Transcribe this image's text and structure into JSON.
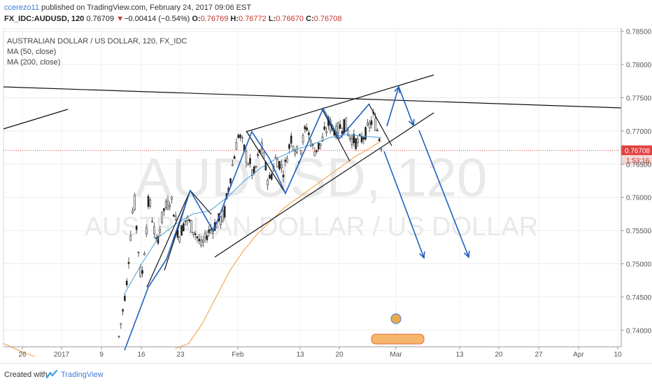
{
  "header": {
    "author": "ccerezo11",
    "published": " published on TradingView.com, February 24, 2017 09:06 EST",
    "symbol": "FX_IDC:AUDUSD, 120",
    "last": "0.76709",
    "change_arrow": "▼",
    "change": "−0.00414 (−0.54%)",
    "o_label": "O:",
    "o": "0.76769",
    "h_label": "H:",
    "h": "0.76772",
    "l_label": "L:",
    "l": "0.76670",
    "c_label": "C:",
    "c": "0.76708"
  },
  "legend": {
    "title": "AUSTRALIAN DOLLAR / US DOLLAR, 120, FX_IDC",
    "ma50": "MA (50, close)",
    "ma200": "MA (200, close)"
  },
  "watermark": {
    "big": "AUDUSD, 120",
    "small": "AUSTRALIAN DOLLAR / US DOLLAR"
  },
  "footer": {
    "created": "Created with",
    "brand": "TradingView"
  },
  "chart_data": {
    "type": "line",
    "title": "AUSTRALIAN DOLLAR / US DOLLAR, 120, FX_IDC",
    "ylim": [
      0.7375,
      0.7855
    ],
    "y_ticks": [
      "0.78500",
      "0.78000",
      "0.77500",
      "0.77000",
      "0.76500",
      "0.76000",
      "0.75500",
      "0.75000",
      "0.74500",
      "0.74000"
    ],
    "x_ticks": [
      "26",
      "2017",
      "9",
      "16",
      "23",
      "Feb",
      "13",
      "20",
      "Mar",
      "13",
      "20",
      "27",
      "Apr",
      "10"
    ],
    "price_label": "0.76708",
    "time_label": "1:53:16",
    "last_price": 0.76708,
    "grid": true,
    "legend_position": "top-left",
    "colors": {
      "candle": "#222222",
      "ma50": "#4a9fd5",
      "ma200": "#f29a3d",
      "price_line": "#e04040",
      "arrows": "#1f5fbf",
      "trendlines": "#111111"
    },
    "price_path": [
      [
        0.7385,
        0.7395
      ],
      [
        0.7462,
        0.747
      ],
      [
        0.7592,
        0.7612
      ],
      [
        0.7462,
        0.7478
      ],
      [
        0.7592,
        0.761
      ],
      [
        0.7522,
        0.7535
      ],
      [
        0.7572,
        0.759
      ],
      [
        0.7592,
        0.7603
      ],
      [
        0.7532,
        0.755
      ],
      [
        0.7562,
        0.7575
      ],
      [
        0.7542,
        0.756
      ],
      [
        0.7522,
        0.7533
      ],
      [
        0.7542,
        0.7555
      ],
      [
        0.7552,
        0.757
      ],
      [
        0.7562,
        0.758
      ],
      [
        0.7632,
        0.7648
      ],
      [
        0.7692,
        0.7702
      ],
      [
        0.7652,
        0.7672
      ],
      [
        0.7622,
        0.7642
      ],
      [
        0.7672,
        0.7685
      ],
      [
        0.7612,
        0.763
      ],
      [
        0.7652,
        0.767
      ],
      [
        0.7632,
        0.7645
      ],
      [
        0.7682,
        0.77
      ],
      [
        0.7652,
        0.7668
      ],
      [
        0.7702,
        0.7715
      ],
      [
        0.7662,
        0.7676
      ],
      [
        0.7672,
        0.769
      ],
      [
        0.7702,
        0.7722
      ],
      [
        0.7692,
        0.7705
      ],
      [
        0.7702,
        0.7725
      ],
      [
        0.7682,
        0.7695
      ],
      [
        0.7672,
        0.769
      ],
      [
        0.7692,
        0.7705
      ],
      [
        0.7712,
        0.773
      ],
      [
        0.7672,
        0.769
      ]
    ],
    "ma50": [
      0.7455,
      0.75,
      0.754,
      0.756,
      0.7575,
      0.758,
      0.76,
      0.7625,
      0.7645,
      0.766,
      0.7672,
      0.768,
      0.769,
      0.7695,
      0.7692,
      0.769
    ],
    "ma200": [
      0.7372,
      0.738,
      0.741,
      0.745,
      0.749,
      0.752,
      0.7545,
      0.7565,
      0.7585,
      0.76,
      0.7615,
      0.763,
      0.7645,
      0.766,
      0.7672,
      0.7685
    ]
  }
}
